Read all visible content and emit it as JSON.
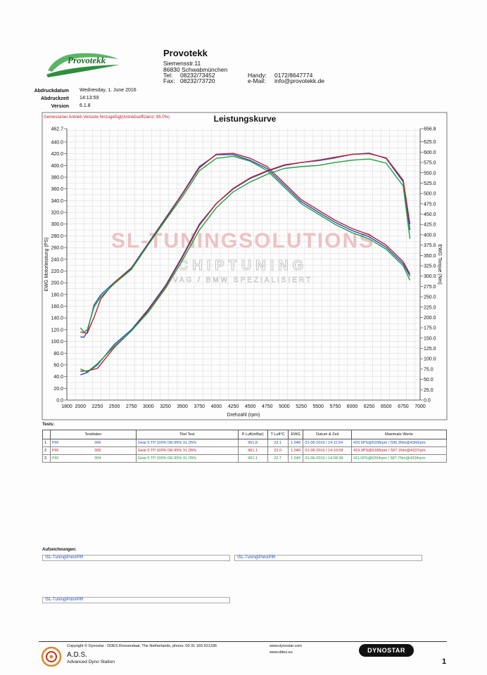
{
  "header": {
    "company": "Provotekk",
    "street": "Siemensstr.11",
    "city": "86830 Schwabmünchen",
    "tel_label": "Tel:",
    "tel": "08232/73452",
    "fax_label": "Fax:",
    "fax": "08232/73720",
    "handy_label": "Handy:",
    "handy": "0172/8647774",
    "email_label": "e-Mail:",
    "email": "info@provotekk.de"
  },
  "print_info": {
    "date_label": "Abdruckdatum",
    "date": "Wednesday, 1. June 2016",
    "time_label": "Abdruckzeit",
    "time": "14:13:59",
    "version_label": "Version",
    "version": "6.1.8"
  },
  "chart_data": {
    "type": "line",
    "title": "Leistungskurve",
    "subtitle": "Gemessener Antrieb Verluste hinzugefügt(Antriebseffizienz: 95.0%)",
    "xlabel": "Drehzahl (rpm)",
    "ylabel_left": "EWG Motorleistung (PS)",
    "ylabel_right": "EWG Torque (Nm)",
    "xlim": [
      1800,
      7000
    ],
    "ylim_left": [
      0,
      462.7
    ],
    "ylim_right": [
      0,
      656.8
    ],
    "x_ticks": [
      1800,
      2000,
      2250,
      2500,
      2750,
      3000,
      3250,
      3500,
      3750,
      4000,
      4250,
      4500,
      4750,
      5000,
      5250,
      5500,
      5750,
      6000,
      6250,
      6500,
      6750,
      7000
    ],
    "y_left_ticks": [
      "0.0",
      "20.0",
      "40.0",
      "60.0",
      "80.0",
      "100.0",
      "120.0",
      "140.0",
      "160.0",
      "180.0",
      "200.0",
      "220.0",
      "240.0",
      "260.0",
      "280.0",
      "300.0",
      "320.0",
      "340.0",
      "360.0",
      "380.0",
      "400.0",
      "420.0",
      "440.0",
      "462.7"
    ],
    "y_right_ticks": [
      "0.0",
      "25.0",
      "50.0",
      "75.0",
      "100.0",
      "125.0",
      "150.0",
      "175.0",
      "200.0",
      "225.0",
      "250.0",
      "275.0",
      "300.0",
      "325.0",
      "350.0",
      "375.0",
      "400.0",
      "425.0",
      "450.0",
      "475.0",
      "500.0",
      "525.0",
      "550.0",
      "575.0",
      "600.0",
      "625.0",
      "656.8"
    ],
    "grid": true,
    "torque_series": [
      {
        "color": "#2050c0",
        "x": [
          2000,
          2050,
          2100,
          2200,
          2300,
          2500,
          2750,
          3000,
          3250,
          3500,
          3750,
          4000,
          4250,
          4500,
          4750,
          5000,
          5250,
          5500,
          5750,
          6000,
          6250,
          6500,
          6750,
          6850
        ],
        "y": [
          153,
          152,
          165,
          230,
          255,
          285,
          320,
          380,
          440,
          500,
          565,
          594,
          594,
          580,
          560,
          520,
          480,
          455,
          430,
          410,
          395,
          370,
          330,
          300
        ]
      },
      {
        "color": "#c02030",
        "x": [
          2000,
          2050,
          2100,
          2200,
          2300,
          2500,
          2750,
          3000,
          3250,
          3500,
          3750,
          4000,
          4250,
          4500,
          4750,
          5000,
          5250,
          5500,
          5750,
          6000,
          6250,
          6500,
          6750,
          6850
        ],
        "y": [
          165,
          163,
          162,
          200,
          245,
          285,
          318,
          378,
          438,
          498,
          562,
          595,
          597,
          585,
          565,
          525,
          485,
          460,
          435,
          415,
          400,
          375,
          335,
          305
        ]
      },
      {
        "color": "#20a040",
        "x": [
          2000,
          2050,
          2100,
          2200,
          2300,
          2500,
          2750,
          3000,
          3250,
          3500,
          3750,
          4000,
          4250,
          4500,
          4750,
          5000,
          5250,
          5500,
          5750,
          6000,
          6250,
          6500,
          6750,
          6850
        ],
        "y": [
          175,
          165,
          170,
          225,
          250,
          282,
          316,
          376,
          435,
          492,
          555,
          585,
          590,
          578,
          555,
          515,
          475,
          450,
          425,
          405,
          390,
          365,
          325,
          290
        ]
      }
    ],
    "power_series": [
      {
        "color": "#2050c0",
        "x": [
          2000,
          2100,
          2250,
          2500,
          2750,
          3000,
          3250,
          3500,
          3750,
          4000,
          4250,
          4500,
          4750,
          5000,
          5250,
          5500,
          5750,
          6000,
          6250,
          6500,
          6750,
          6850
        ],
        "y": [
          43,
          47,
          60,
          95,
          120,
          155,
          195,
          245,
          300,
          335,
          360,
          378,
          390,
          400,
          405,
          408,
          413,
          419,
          421,
          412,
          372,
          290
        ]
      },
      {
        "color": "#c02030",
        "x": [
          2000,
          2100,
          2250,
          2500,
          2750,
          3000,
          3250,
          3500,
          3750,
          4000,
          4250,
          4500,
          4750,
          5000,
          5250,
          5500,
          5750,
          6000,
          6250,
          6500,
          6750,
          6850
        ],
        "y": [
          49,
          50,
          54,
          90,
          118,
          153,
          193,
          243,
          298,
          335,
          361,
          379,
          391,
          401,
          405,
          409,
          414,
          419,
          420,
          413,
          375,
          300
        ]
      },
      {
        "color": "#20a040",
        "x": [
          2000,
          2100,
          2250,
          2500,
          2750,
          3000,
          3250,
          3500,
          3750,
          4000,
          4250,
          4500,
          4750,
          5000,
          5250,
          5500,
          5750,
          6000,
          6250,
          6500,
          6750,
          6850
        ],
        "y": [
          53,
          48,
          62,
          92,
          118,
          150,
          190,
          238,
          290,
          328,
          355,
          372,
          385,
          395,
          398,
          400,
          405,
          409,
          411,
          404,
          365,
          275
        ]
      }
    ]
  },
  "watermark": {
    "line1": "SL-TUNINGSOLUTIONS",
    "line2": "CHIPTUNING",
    "line3": "VAG / BMW SPEZIALISIERT"
  },
  "tests": {
    "label": "Tests:",
    "headers": [
      "",
      "Testdaten",
      "Titel Test",
      "P Luft(mBar)",
      "T Luft°C",
      "EWG",
      "Datum & Zeit",
      "Maximale Werte"
    ],
    "rows": [
      {
        "num": "1",
        "name": "PIR",
        "id": "006",
        "title": "Gear:5 TP:100% DE:95% XL:35%",
        "p_luft": "961.8",
        "t_luft": "23.1",
        "ewg": "1.048",
        "datetime": "01-06-2016 / 14:11:54",
        "max": "420.6PS@6208rpm / 596.3Nm@4360rpm"
      },
      {
        "num": "2",
        "name": "PIR",
        "id": "005",
        "title": "Gear:5 TP:100% DE:95% XL:35%",
        "p_luft": "961.1",
        "t_luft": "23.0",
        "ewg": "1.049",
        "datetime": "01-06-2016 / 14:10:09",
        "max": "419.0PS@6189rpm / 597.1Nm@4337rpm"
      },
      {
        "num": "3",
        "name": "PIR",
        "id": "004",
        "title": "Gear:5 TP:100% DE:95% XL:35%",
        "p_luft": "961.1",
        "t_luft": "22.7",
        "ewg": "1.049",
        "datetime": "01-06-2016 / 14:08:38",
        "max": "411.0PS@6204rpm / 587.7Nm@4334rpm"
      }
    ]
  },
  "notes": {
    "label": "Aufzeichnungen:",
    "entries": [
      "\\SL-Tuning\\Polo\\PIR",
      "\\SL-Tuning\\Polo\\PIR",
      "\\SL-Tuning\\Polo\\PIR"
    ]
  },
  "footer": {
    "copyright": "Copyright © Dynostar : DDES Roosendaal, The Netherlands, phone: 00 31 165-521336",
    "brand": "A.D.S.",
    "brand_sub": "Advanced Dyno Station",
    "web1": "www.dynostar.com",
    "web2": "www.ddes.eu",
    "dyno_logo_text": "DYNOSTAR",
    "page_number": "1"
  }
}
